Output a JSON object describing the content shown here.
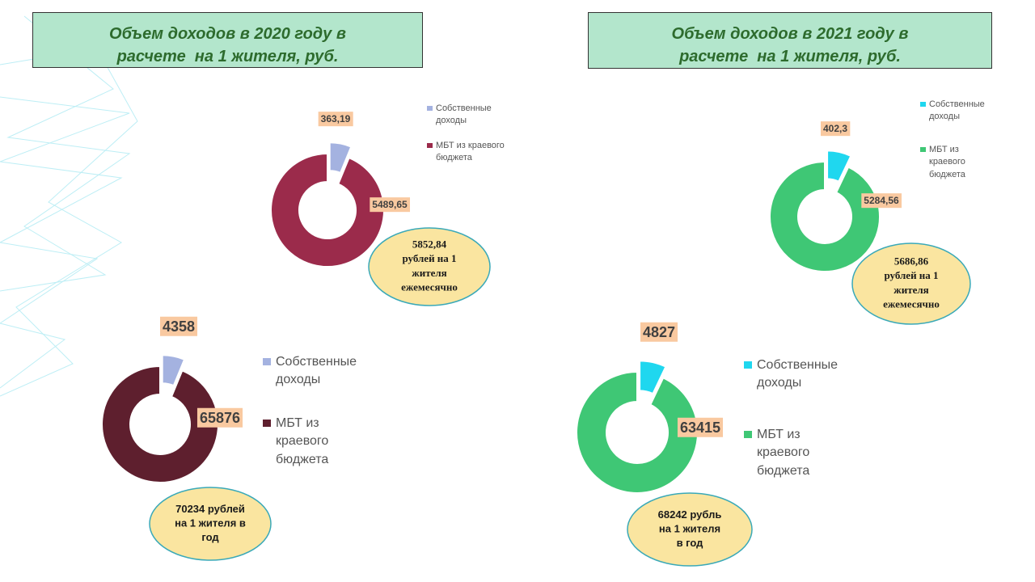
{
  "headers": [
    [
      "Объем доходов в 2020 году в",
      "расчете  на 1 жителя, руб."
    ],
    [
      "Объем доходов в 2021 году в",
      "расчете  на 1 жителя, руб."
    ]
  ],
  "chart_data": [
    {
      "type": "donut",
      "categories": [
        "Собственные доходы",
        "МБТ из краевого бюджета"
      ],
      "values": [
        363.19,
        5489.65
      ],
      "value_labels": [
        "363,19",
        "5489,65"
      ],
      "colors": [
        "#a4b2e0",
        "#9b2b4b"
      ],
      "annotation": [
        "5852,84",
        "рублей на 1",
        "жителя",
        "ежемесячно"
      ]
    },
    {
      "type": "donut",
      "categories": [
        "Собственные доходы",
        "МБТ из краевого бюджета"
      ],
      "values": [
        402.3,
        5284.56
      ],
      "value_labels": [
        "402,3",
        "5284,56"
      ],
      "colors": [
        "#1fd7ef",
        "#3fc775"
      ],
      "annotation": [
        "5686,86",
        "рублей на 1",
        "жителя",
        "ежемесячно"
      ]
    },
    {
      "type": "donut",
      "categories": [
        "Собственные доходы",
        "МБТ из краевого бюджета"
      ],
      "values": [
        4358,
        65876
      ],
      "colors": [
        "#a4b2e0",
        "#5e1f2e"
      ],
      "annotation": [
        "70234 рублей",
        "на 1 жителя в",
        "год"
      ]
    },
    {
      "type": "donut",
      "categories": [
        "Собственные доходы",
        "МБТ из краевого бюджета"
      ],
      "values": [
        4827,
        63415
      ],
      "colors": [
        "#1fd7ef",
        "#3fc775"
      ],
      "annotation": [
        "68242 рубль",
        "на 1 жителя",
        "в год"
      ]
    }
  ]
}
